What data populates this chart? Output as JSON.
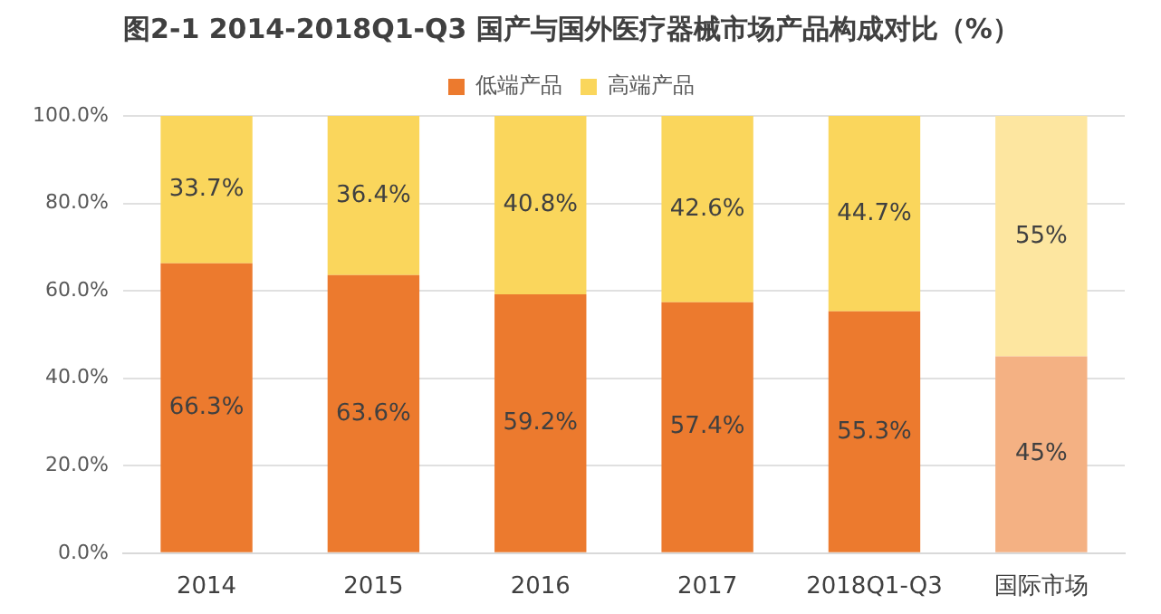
{
  "chart_data": {
    "type": "bar",
    "title": "图2-1 2014-2018Q1-Q3 国产与国外医疗器械市场产品构成对比（%）",
    "categories": [
      "2014",
      "2015",
      "2016",
      "2017",
      "2018Q1-Q3",
      "国际市场"
    ],
    "stacked": true,
    "ylim": [
      0,
      100
    ],
    "yticks": [
      {
        "value": 0,
        "label": "0.0%"
      },
      {
        "value": 20,
        "label": "20.0%"
      },
      {
        "value": 40,
        "label": "40.0%"
      },
      {
        "value": 60,
        "label": "60.0%"
      },
      {
        "value": 80,
        "label": "80.0%"
      },
      {
        "value": 100,
        "label": "100.0%"
      }
    ],
    "grid": "y",
    "legend": "top",
    "series": [
      {
        "name": "低端产品",
        "color": "#ec7a2e",
        "colors": [
          "#ec7a2e",
          "#ec7a2e",
          "#ec7a2e",
          "#ec7a2e",
          "#ec7a2e",
          "#f4b183"
        ],
        "values": [
          66.3,
          63.6,
          59.2,
          57.4,
          55.3,
          45
        ],
        "value_labels": [
          "66.3%",
          "63.6%",
          "59.2%",
          "57.4%",
          "55.3%",
          "45%"
        ]
      },
      {
        "name": "高端产品",
        "color": "#fad65c",
        "colors": [
          "#fad65c",
          "#fad65c",
          "#fad65c",
          "#fad65c",
          "#fad65c",
          "#fde6a0"
        ],
        "values": [
          33.7,
          36.4,
          40.8,
          42.6,
          44.7,
          55
        ],
        "value_labels": [
          "33.7%",
          "36.4%",
          "40.8%",
          "42.6%",
          "44.7%",
          "55%"
        ]
      }
    ]
  }
}
